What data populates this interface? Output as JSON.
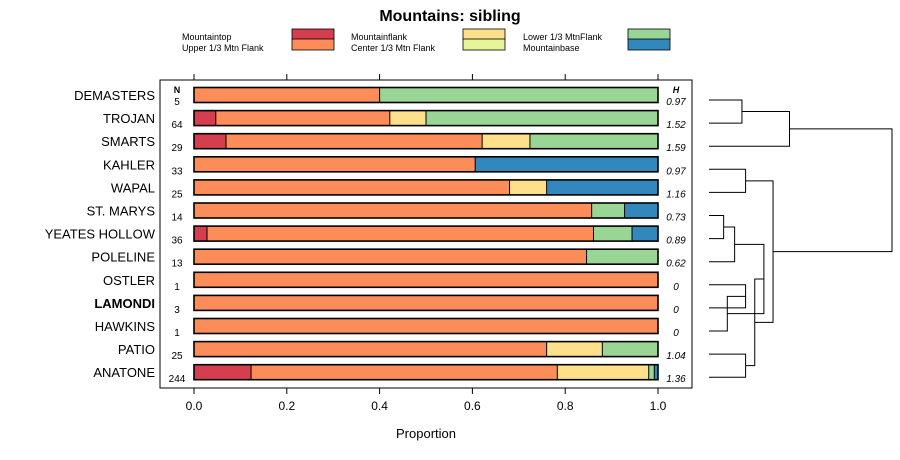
{
  "chart_data": {
    "type": "bar",
    "orientation": "horizontal",
    "stacked": true,
    "title": "Mountains: sibling",
    "xlabel": "Proportion",
    "xlim": [
      0,
      1
    ],
    "x_ticks": [
      "0.0",
      "0.2",
      "0.4",
      "0.6",
      "0.8",
      "1.0"
    ],
    "n_header": "N",
    "h_header": "H",
    "legend": [
      {
        "label": "Mountaintop",
        "color": "#d53e4f"
      },
      {
        "label": "Upper 1/3 Mtn Flank",
        "color": "#fc8d59"
      },
      {
        "label": "Mountainflank",
        "color": "#fee08b"
      },
      {
        "label": "Center 1/3 Mtn Flank",
        "color": "#fee08b"
      },
      {
        "label": "Lower 1/3 MtnFlank",
        "color": "#99d594"
      },
      {
        "label": "Mountainbase",
        "color": "#e6f598"
      },
      {
        "label": "",
        "color": "#3288bd"
      }
    ],
    "segment_colors": [
      "#d53e4f",
      "#fc8d59",
      "#fee08b",
      "#99d594",
      "#3288bd"
    ],
    "rows": [
      {
        "name": "DEMASTERS",
        "n": "5",
        "h": "0.97",
        "bold": false,
        "values": [
          0,
          0.4,
          0,
          0.6,
          0
        ]
      },
      {
        "name": "TROJAN",
        "n": "64",
        "h": "1.52",
        "bold": false,
        "values": [
          0.047,
          0.375,
          0.078,
          0.5,
          0
        ]
      },
      {
        "name": "SMARTS",
        "n": "29",
        "h": "1.59",
        "bold": false,
        "values": [
          0.069,
          0.552,
          0.103,
          0.276,
          0
        ]
      },
      {
        "name": "KAHLER",
        "n": "33",
        "h": "0.97",
        "bold": false,
        "values": [
          0,
          0.606,
          0,
          0,
          0.394
        ]
      },
      {
        "name": "WAPAL",
        "n": "25",
        "h": "1.16",
        "bold": false,
        "values": [
          0,
          0.68,
          0.08,
          0,
          0.24
        ]
      },
      {
        "name": "ST. MARYS",
        "n": "14",
        "h": "0.73",
        "bold": false,
        "values": [
          0,
          0.857,
          0,
          0.071,
          0.072
        ]
      },
      {
        "name": "YEATES HOLLOW",
        "n": "36",
        "h": "0.89",
        "bold": false,
        "values": [
          0.028,
          0.833,
          0,
          0.083,
          0.056
        ]
      },
      {
        "name": "POLELINE",
        "n": "13",
        "h": "0.62",
        "bold": false,
        "values": [
          0,
          0.846,
          0,
          0.154,
          0
        ]
      },
      {
        "name": "OSTLER",
        "n": "1",
        "h": "0",
        "bold": false,
        "values": [
          0,
          1,
          0,
          0,
          0
        ]
      },
      {
        "name": "LAMONDI",
        "n": "3",
        "h": "0",
        "bold": true,
        "values": [
          0,
          1,
          0,
          0,
          0
        ]
      },
      {
        "name": "HAWKINS",
        "n": "1",
        "h": "0",
        "bold": false,
        "values": [
          0,
          1,
          0,
          0,
          0
        ]
      },
      {
        "name": "PATIO",
        "n": "25",
        "h": "1.04",
        "bold": false,
        "values": [
          0,
          0.76,
          0.12,
          0.12,
          0
        ]
      },
      {
        "name": "ANATONE",
        "n": "244",
        "h": "1.36",
        "bold": false,
        "values": [
          0.123,
          0.66,
          0.197,
          0.012,
          0.008
        ]
      }
    ],
    "dendrogram": {
      "max_height": 1,
      "merges": [
        {
          "a": 0,
          "b": 1,
          "height": 0.18
        },
        {
          "a": 3,
          "b": 4,
          "height": 0.2
        },
        {
          "a": 5,
          "b": 6,
          "height": 0.08
        },
        {
          "a": 8,
          "b": 9,
          "height": 0.2
        },
        {
          "a": 11,
          "b": 12,
          "height": 0.2
        },
        {
          "a": "m0",
          "b": 2,
          "height": 0.44
        },
        {
          "a": "m2",
          "b": 7,
          "height": 0.14
        },
        {
          "a": "m3",
          "b": 10,
          "height": 0.1
        },
        {
          "a": "m6",
          "b": "m7",
          "height": 0.3
        },
        {
          "a": "m8",
          "b": "m4",
          "height": 0.25
        },
        {
          "a": "m1",
          "b": "m9",
          "height": 0.35
        },
        {
          "a": "m5",
          "b": "m10",
          "height": 1.0
        }
      ]
    }
  }
}
